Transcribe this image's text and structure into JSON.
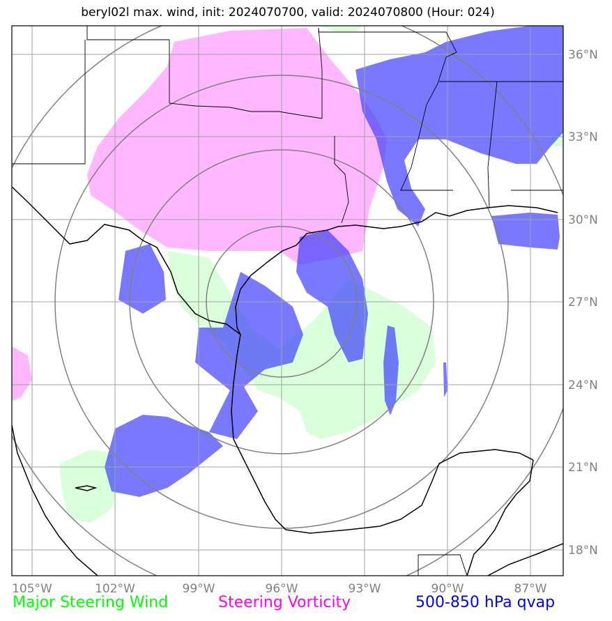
{
  "title": "beryl02l max. wind, init: 2024070700, valid: 2024070800 (Hour: 024)",
  "map": {
    "lon_labels": [
      "105°W",
      "102°W",
      "99°W",
      "96°W",
      "93°W",
      "90°W",
      "87°W"
    ],
    "lat_labels": [
      "36°N",
      "33°N",
      "30°N",
      "27°N",
      "24°N",
      "21°N",
      "18°N"
    ],
    "colors": {
      "wind": "#00ff00",
      "vorticity": "#ff00ff",
      "qvap": "#0000ff",
      "grid": "#a0a0a0",
      "range_rings": "#808080",
      "coastline": "#000000"
    }
  },
  "legend": {
    "wind": "Major Steering Wind",
    "vorticity": "Steering Vorticity",
    "qvap": "500-850 hPa qvap"
  }
}
